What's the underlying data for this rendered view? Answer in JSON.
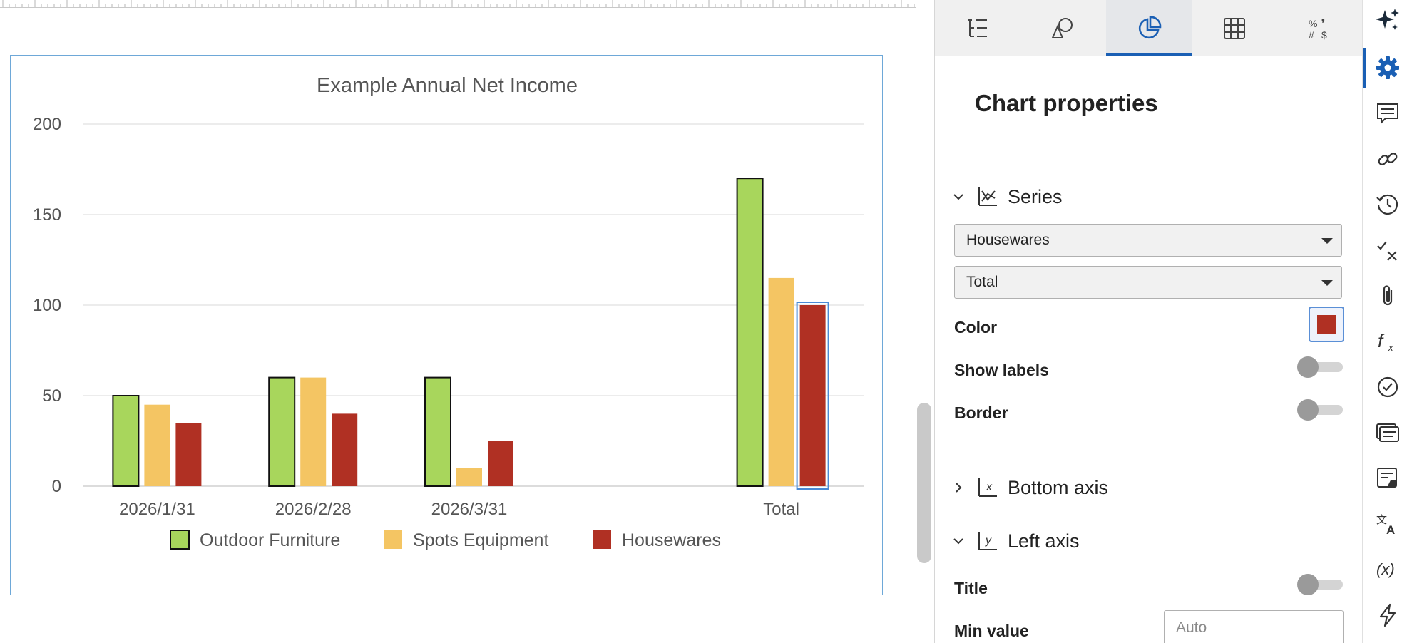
{
  "chart_data": {
    "type": "bar",
    "title": "Example Annual Net Income",
    "categories": [
      "2026/1/31",
      "2026/2/28",
      "2026/3/31",
      "",
      "Total"
    ],
    "series": [
      {
        "name": "Outdoor Furniture",
        "color": "#a8d65c",
        "border": "#111111",
        "values": [
          50,
          60,
          60,
          null,
          170
        ]
      },
      {
        "name": "Spots Equipment",
        "color": "#f4c563",
        "border": null,
        "values": [
          45,
          60,
          10,
          null,
          115
        ]
      },
      {
        "name": "Housewares",
        "color": "#b03023",
        "border": null,
        "values": [
          35,
          40,
          25,
          null,
          100
        ]
      }
    ],
    "xlabel": "",
    "ylabel": "",
    "ylim": [
      0,
      200
    ],
    "yticks": [
      0,
      50,
      100,
      150,
      200
    ],
    "grid": true,
    "legend": "bottom",
    "selected": {
      "series": "Housewares",
      "category": "Total"
    }
  },
  "panel": {
    "tabs": [
      {
        "name": "setup-tab",
        "icon": "list-tree-icon"
      },
      {
        "name": "shapes-tab",
        "icon": "shapes-icon"
      },
      {
        "name": "chart-tab",
        "icon": "pie-chart-icon",
        "active": true
      },
      {
        "name": "table-tab",
        "icon": "grid-table-icon"
      },
      {
        "name": "number-format-tab",
        "icon": "number-format-icon"
      }
    ],
    "title": "Chart properties",
    "series_section": {
      "label": "Series",
      "series_select": "Housewares",
      "point_select": "Total",
      "color_label": "Color",
      "color_value": "#b03023",
      "show_labels_label": "Show labels",
      "show_labels_on": false,
      "border_label": "Border",
      "border_on": false
    },
    "bottom_axis_label": "Bottom axis",
    "bottom_axis_icon_text": "x",
    "left_axis": {
      "label": "Left axis",
      "icon_text": "y",
      "title_label": "Title",
      "title_on": false,
      "min_label": "Min value",
      "min_placeholder": "Auto"
    }
  },
  "rail": {
    "icons": [
      "ai-sparkle-icon",
      "gear-icon",
      "comment-icon",
      "link-icon",
      "history-icon",
      "track-changes-icon",
      "attachment-icon",
      "function-icon",
      "check-circle-icon",
      "notes-icon",
      "note-edit-icon",
      "translate-icon",
      "variable-icon",
      "lightning-icon"
    ],
    "active": "gear-icon",
    "variable_text": "(x)"
  }
}
